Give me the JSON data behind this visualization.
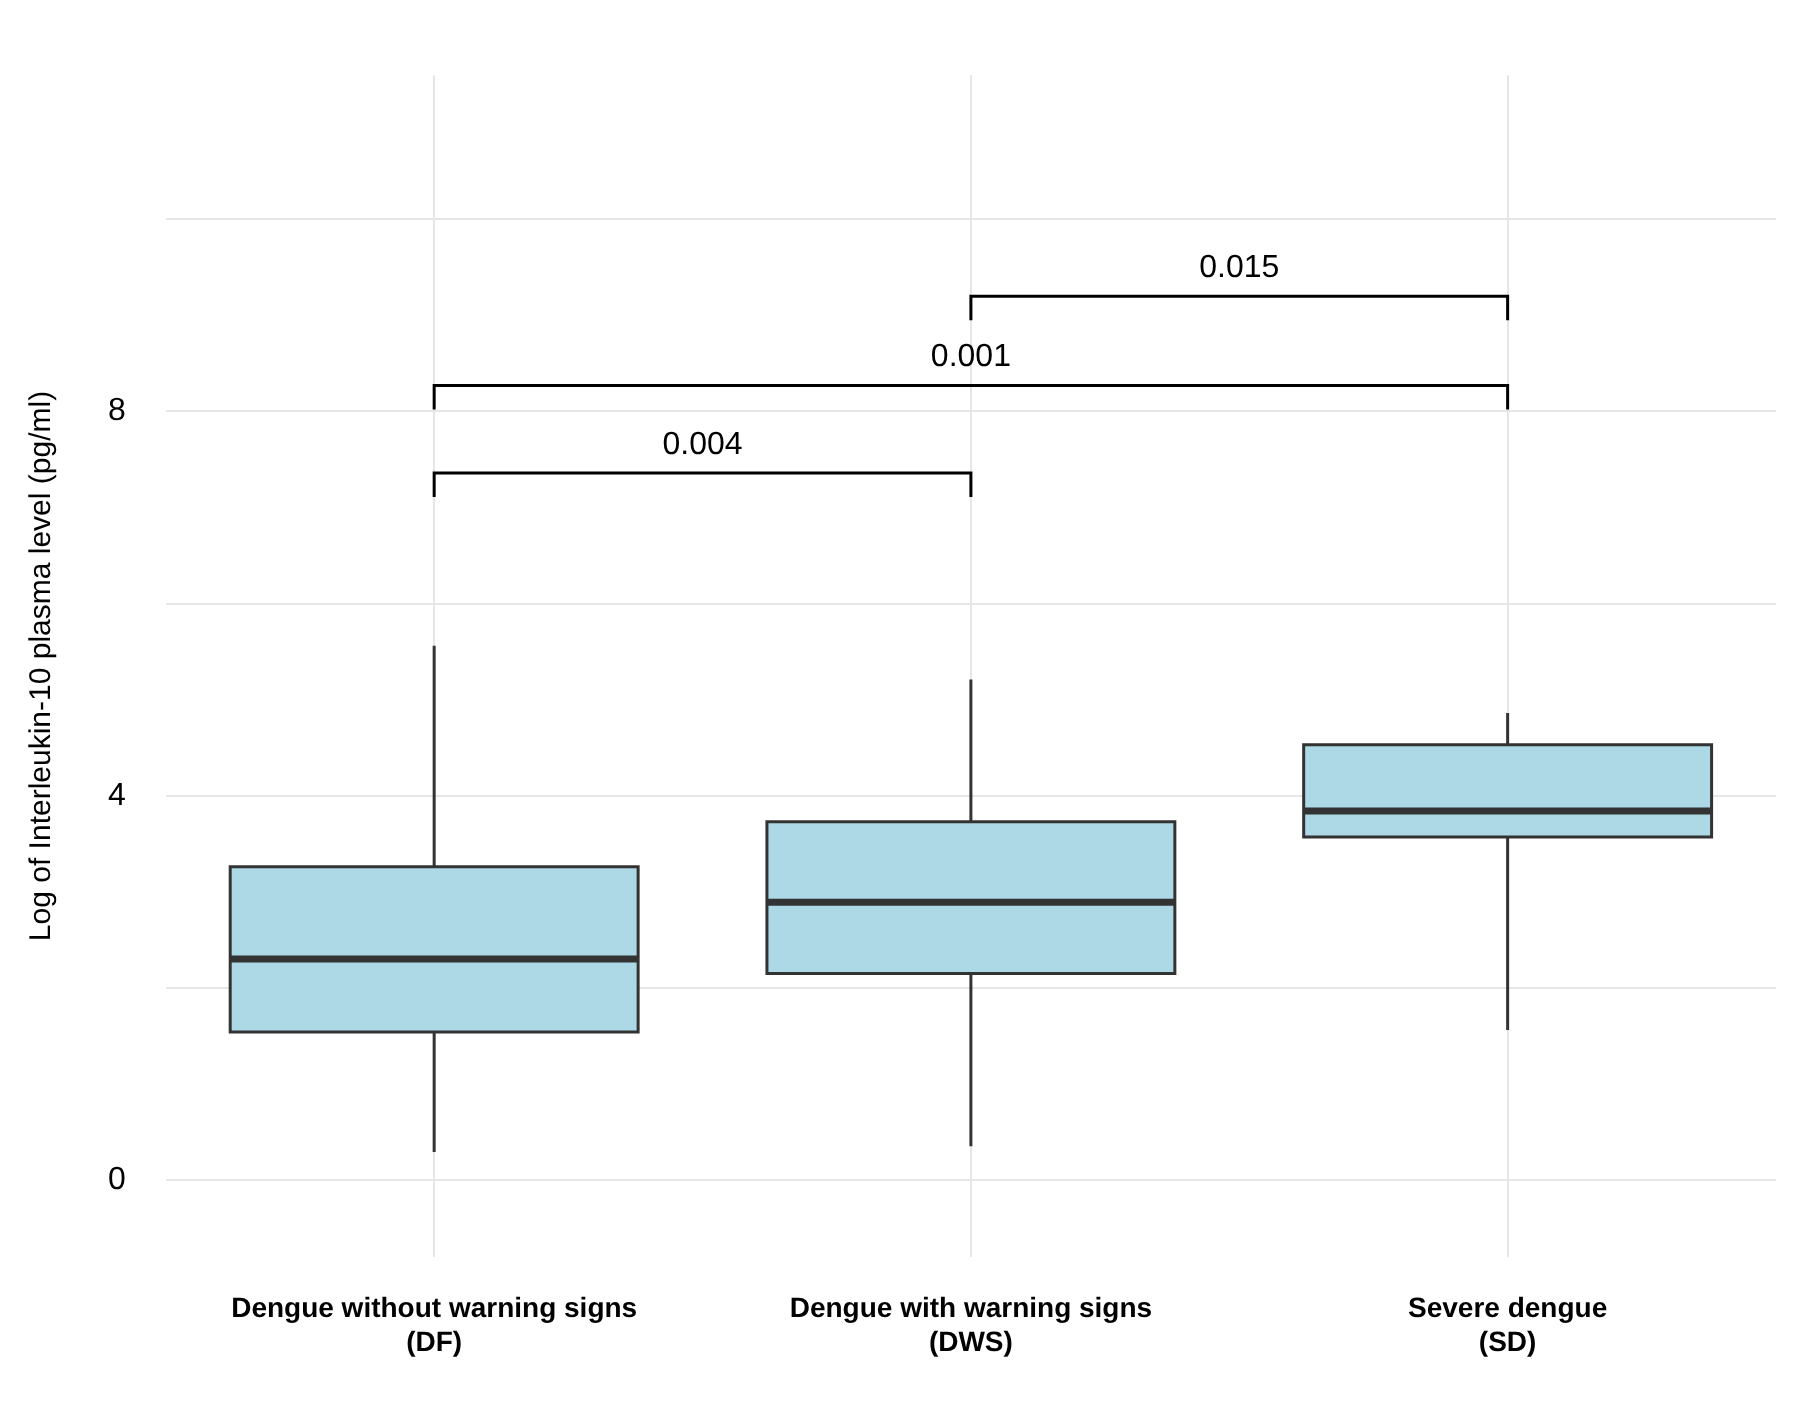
{
  "chart_data": {
    "type": "box",
    "ylabel": "Log of Interleukin-10 plasma level (pg/ml)",
    "categories": [
      "Dengue without warning signs\n(DF)",
      "Dengue with warning signs\n(DWS)",
      "Severe dengue\n(SD)"
    ],
    "series": [
      {
        "color": "#add8e6",
        "boxes": [
          {
            "low": 0.29,
            "q1": 1.54,
            "median": 2.3,
            "q3": 3.26,
            "high": 5.56
          },
          {
            "low": 0.35,
            "q1": 2.15,
            "median": 2.89,
            "q3": 3.73,
            "high": 5.21
          },
          {
            "low": 1.56,
            "q1": 3.57,
            "median": 3.84,
            "q3": 4.53,
            "high": 4.86
          }
        ]
      }
    ],
    "ylim": [
      -0.8,
      11.5
    ],
    "yticks": [
      0,
      {
        "value": 2,
        "label": null
      },
      4,
      {
        "value": 6,
        "label": null
      },
      8,
      {
        "value": 10,
        "label": null
      }
    ],
    "grid": true,
    "annotations": [
      "0.004",
      "0.001",
      "0.015"
    ]
  }
}
